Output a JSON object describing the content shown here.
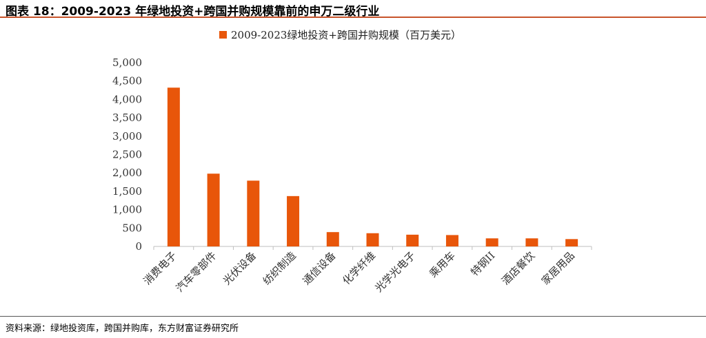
{
  "figure_title": "图表 18：2009-2023 年绿地投资+跨国并购规模靠前的申万二级行业",
  "source_note": "资料来源：绿地投资库，跨国并购库，东方财富证券研究所",
  "colors": {
    "bar": "#e8560a",
    "rule": "#c8532a",
    "axis": "#bfbfbf",
    "text": "#333333"
  },
  "chart_data": {
    "type": "bar",
    "title": "",
    "xlabel": "",
    "ylabel": "",
    "ylim": [
      0,
      5000
    ],
    "yticks": [
      0,
      500,
      1000,
      1500,
      2000,
      2500,
      3000,
      3500,
      4000,
      4500,
      5000
    ],
    "ytick_labels": [
      "0",
      "500",
      "1,000",
      "1,500",
      "2,000",
      "2,500",
      "3,000",
      "3,500",
      "4,000",
      "4,500",
      "5,000"
    ],
    "grid": false,
    "legend_position": "top",
    "categories": [
      "消费电子",
      "汽车零部件",
      "光伏设备",
      "纺织制造",
      "通信设备",
      "化学纤维",
      "光学光电子",
      "乘用车",
      "特钢II",
      "酒店餐饮",
      "家居用品"
    ],
    "series": [
      {
        "name": "2009-2023绿地投资+跨国并购规模（百万美元）",
        "values": [
          4320,
          1980,
          1790,
          1370,
          390,
          360,
          320,
          310,
          220,
          220,
          200
        ]
      }
    ]
  }
}
